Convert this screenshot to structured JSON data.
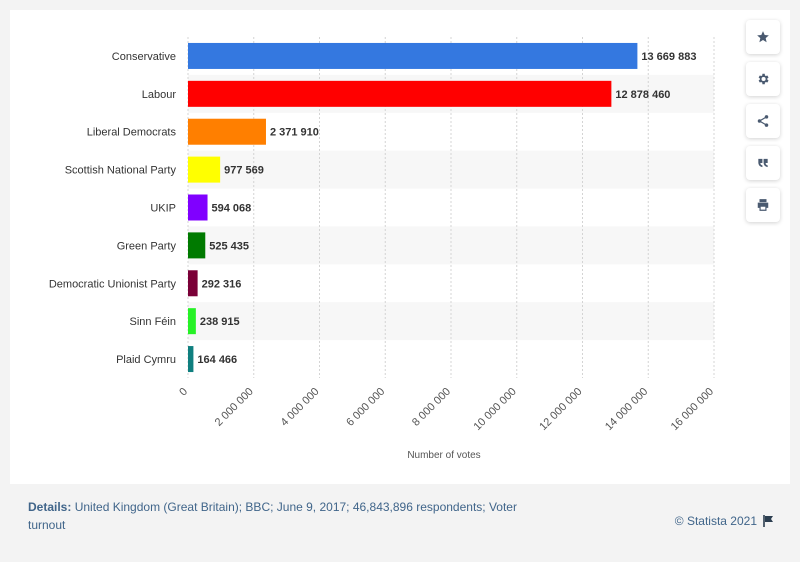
{
  "chart_data": {
    "type": "bar",
    "orientation": "horizontal",
    "categories": [
      "Conservative",
      "Labour",
      "Liberal Democrats",
      "Scottish National Party",
      "UKIP",
      "Green Party",
      "Democratic Unionist Party",
      "Sinn Féin",
      "Plaid Cymru"
    ],
    "values": [
      13669883,
      12878460,
      2371910,
      977569,
      594068,
      525435,
      292316,
      238915,
      164466
    ],
    "value_labels": [
      "13 669 883",
      "12 878 460",
      "2 371 910",
      "977 569",
      "594 068",
      "525 435",
      "292 316",
      "238 915",
      "164 466"
    ],
    "colors": [
      "#3478e0",
      "#ff0000",
      "#ff7f00",
      "#ffff00",
      "#8000ff",
      "#007a00",
      "#7a0037",
      "#26f226",
      "#0f7f7f"
    ],
    "xlabel": "Number of votes",
    "xlim": [
      0,
      16000000
    ],
    "xticks": [
      0,
      2000000,
      4000000,
      6000000,
      8000000,
      10000000,
      12000000,
      14000000,
      16000000
    ],
    "xtick_labels": [
      "0",
      "2 000 000",
      "4 000 000",
      "6 000 000",
      "8 000 000",
      "10 000 000",
      "12 000 000",
      "14 000 000",
      "16 000 000"
    ],
    "grid": true
  },
  "footer": {
    "details_label": "Details:",
    "details_text": " United Kingdom (Great Britain); BBC; June 9, 2017; 46,843,896 respondents; Voter turnout",
    "credit": "© Statista 2021"
  },
  "toolbar": {
    "icons": [
      "star-icon",
      "gear-icon",
      "share-icon",
      "quote-icon",
      "print-icon"
    ]
  }
}
